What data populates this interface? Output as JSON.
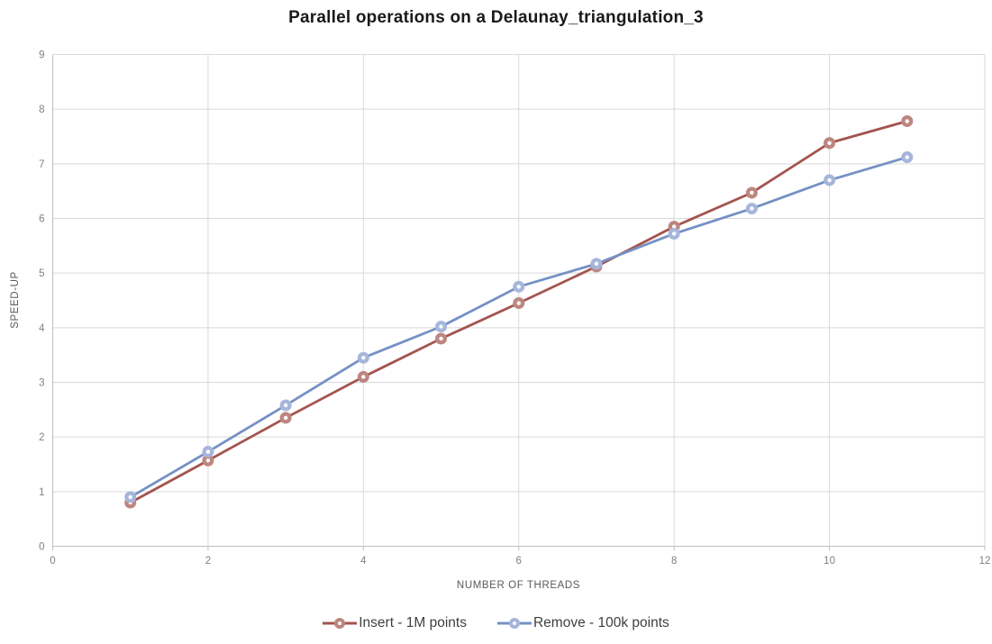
{
  "title": "Parallel operations on a Delaunay_triangulation_3",
  "chart_data": {
    "type": "line",
    "title": "Parallel operations on a Delaunay_triangulation_3",
    "xlabel": "NUMBER OF THREADS",
    "ylabel": "SPEED-UP",
    "x": [
      1,
      2,
      3,
      4,
      5,
      6,
      7,
      8,
      9,
      10,
      11
    ],
    "series": [
      {
        "name": "Insert - 1M points",
        "values": [
          0.8,
          1.57,
          2.35,
          3.1,
          3.8,
          4.45,
          5.12,
          5.85,
          6.47,
          7.38,
          7.78
        ],
        "line_color": "#A4544E",
        "marker_color": "#BD8680"
      },
      {
        "name": "Remove - 100k points",
        "values": [
          0.9,
          1.73,
          2.58,
          3.45,
          4.02,
          4.75,
          5.17,
          5.72,
          6.18,
          6.7,
          7.12
        ],
        "line_color": "#7591C5",
        "marker_color": "#A6B6DB"
      }
    ],
    "xlim": [
      0,
      12
    ],
    "ylim": [
      0,
      9
    ],
    "x_ticks": [
      0,
      2,
      4,
      6,
      8,
      10,
      12
    ],
    "y_ticks": [
      0,
      1,
      2,
      3,
      4,
      5,
      6,
      7,
      8,
      9
    ],
    "grid": true,
    "legend_position": "bottom"
  },
  "colors": {
    "gridline": "#D9D9D9",
    "axis_line": "#BFBFBF",
    "tick_label": "#808080",
    "axis_title": "#595959",
    "chart_title": "#1A1A1A",
    "legend_text": "#3F3F3F",
    "background": "#FFFFFF"
  }
}
